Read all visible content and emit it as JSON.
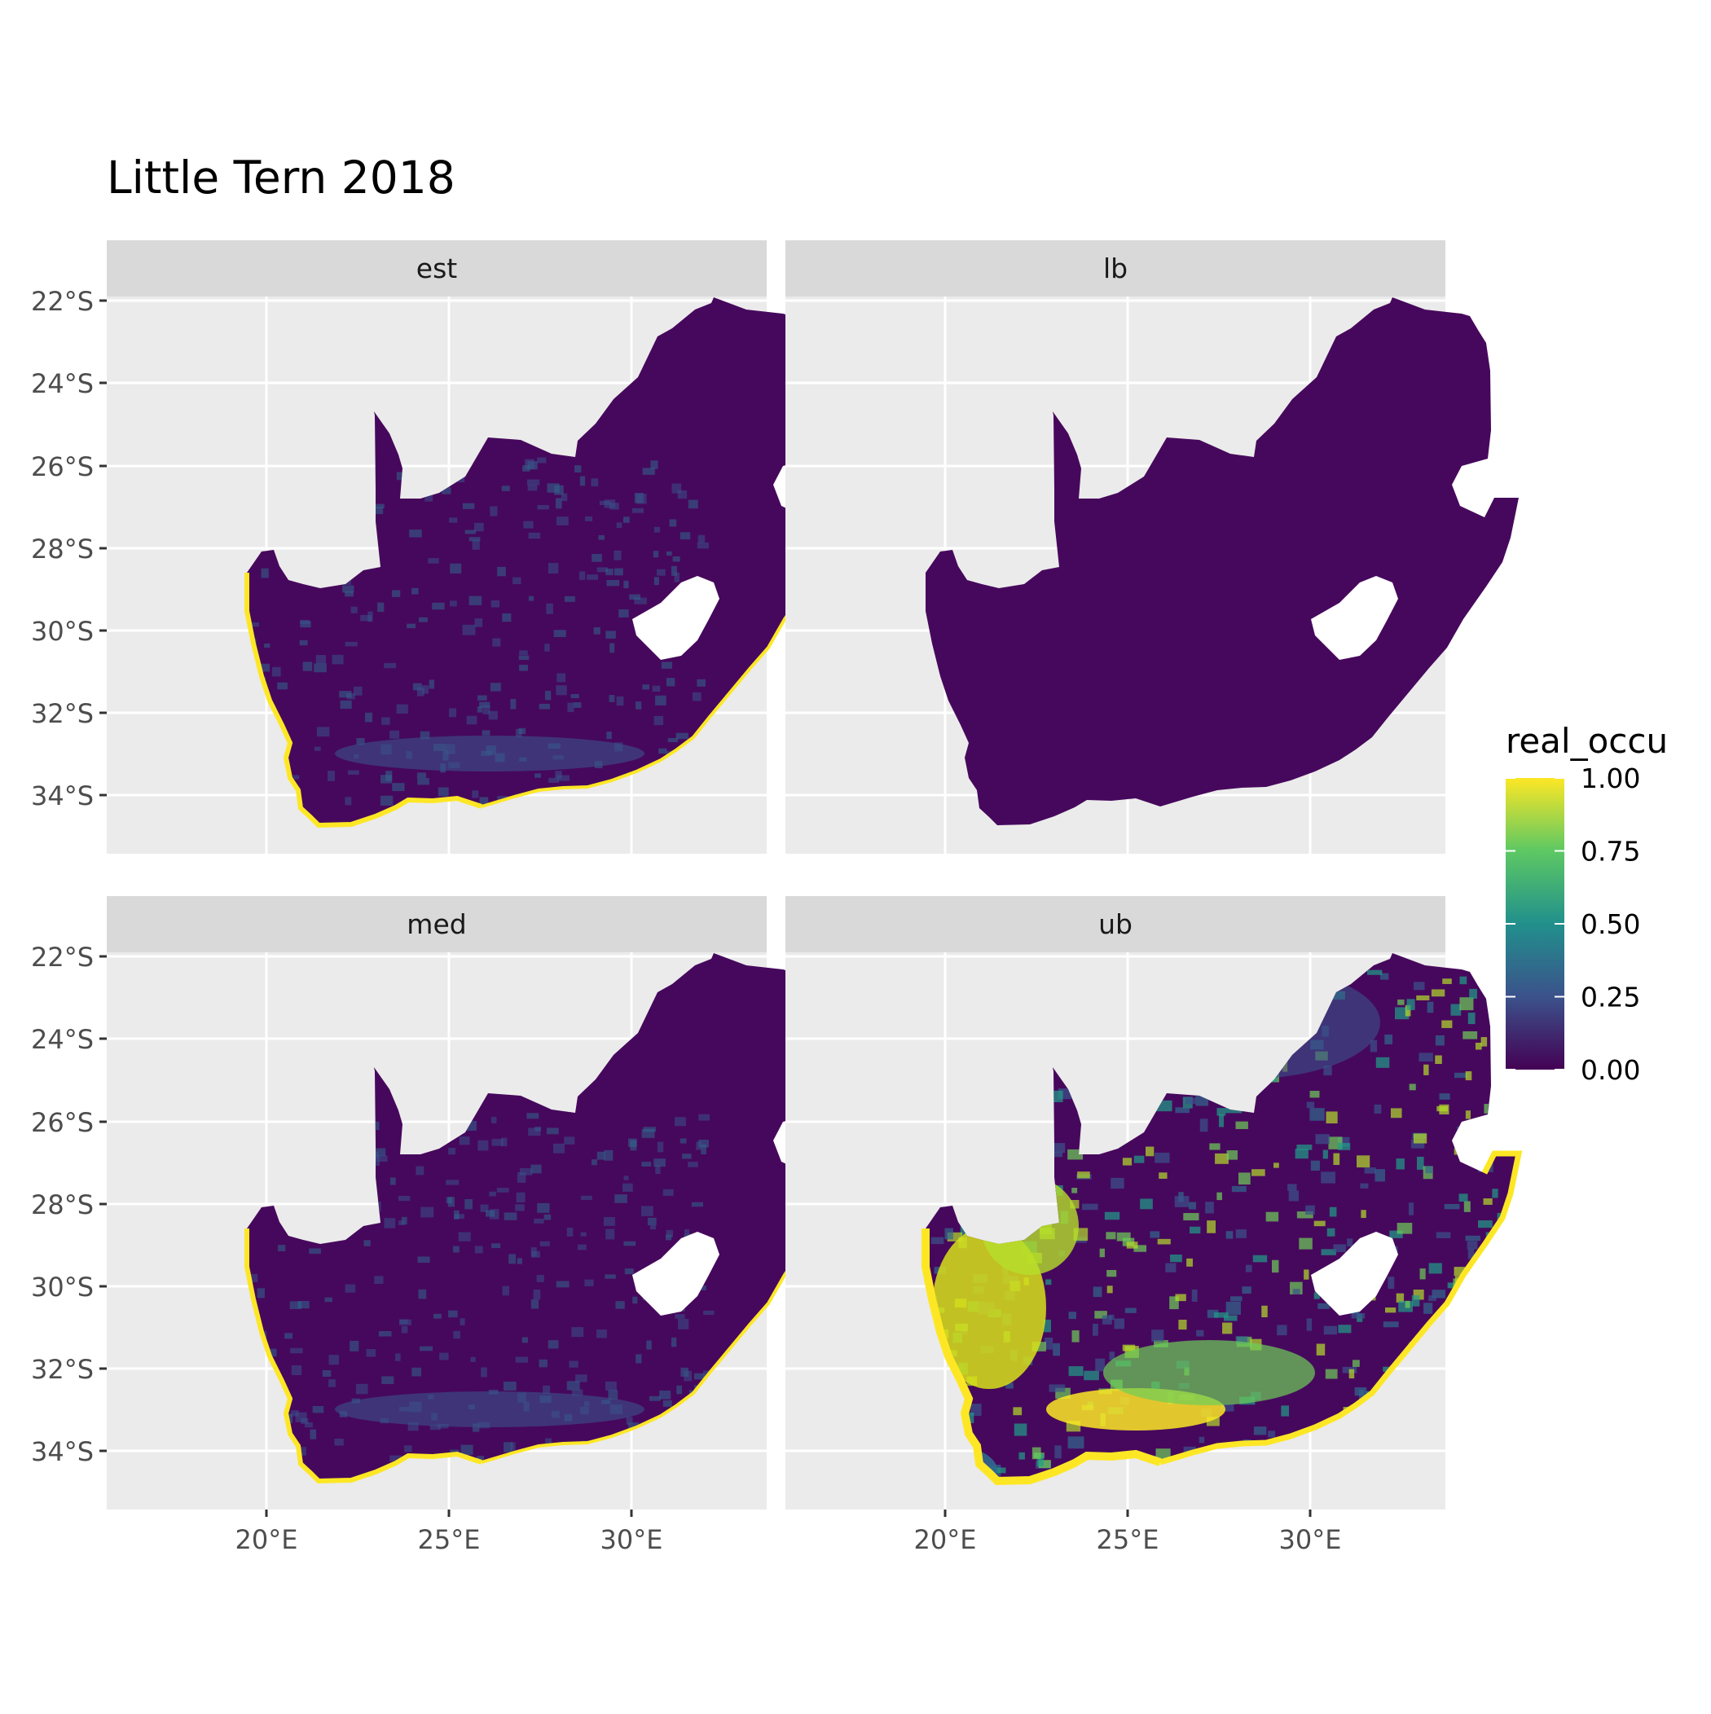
{
  "title": "Little Tern 2018",
  "panels": [
    {
      "id": "est",
      "label": "est",
      "mode": "low"
    },
    {
      "id": "lb",
      "label": "lb",
      "mode": "flat"
    },
    {
      "id": "med",
      "label": "med",
      "mode": "low"
    },
    {
      "id": "ub",
      "label": "ub",
      "mode": "high"
    }
  ],
  "x_ticks": [
    "20°E",
    "25°E",
    "30°E"
  ],
  "y_ticks": [
    "22°S",
    "24°S",
    "26°S",
    "28°S",
    "30°S",
    "32°S",
    "34°S"
  ],
  "legend": {
    "title": "real_occu",
    "ticks": [
      "1.00",
      "0.75",
      "0.50",
      "0.25",
      "0.00"
    ],
    "colors": [
      "#440154",
      "#3b528b",
      "#21908c",
      "#5dc863",
      "#fde725"
    ]
  },
  "colors": {
    "panel_bg": "#ebebeb",
    "strip_bg": "#d9d9d9",
    "grid": "#ffffff",
    "land_low": "#46085c",
    "coast": "#fde725"
  }
}
